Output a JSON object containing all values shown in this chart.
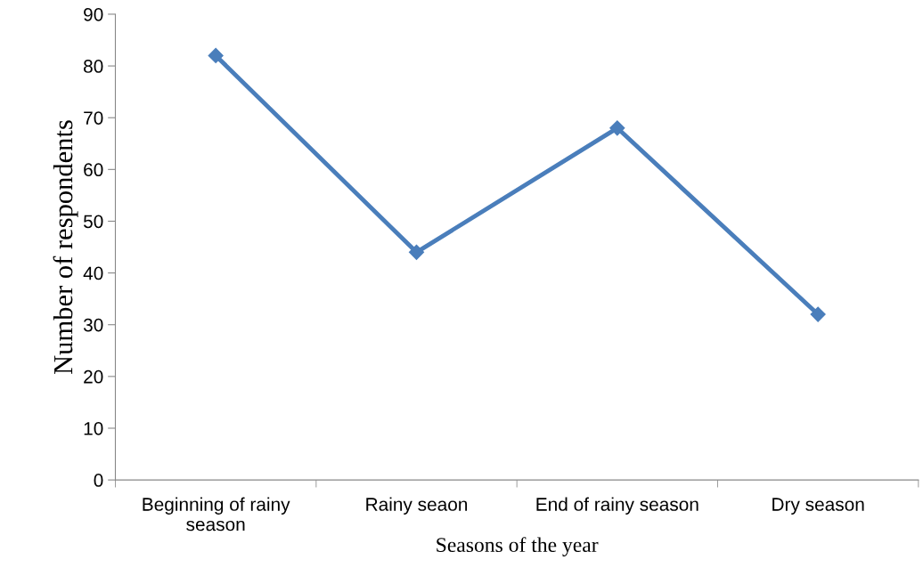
{
  "chart_data": {
    "type": "line",
    "xlabel": "Seasons of the year",
    "ylabel": "Number of respondents",
    "categories": [
      "Beginning of rainy\nseason",
      "Rainy seaon",
      "End of rainy season",
      "Dry season"
    ],
    "series": [
      {
        "color": "#4a7ebb",
        "values": [
          82,
          44,
          68,
          32
        ]
      }
    ],
    "ylim": [
      0,
      90
    ],
    "yticks": [
      0,
      10,
      20,
      30,
      40,
      50,
      60,
      70,
      80,
      90
    ],
    "marker": "diamond",
    "line_style": "solid",
    "grid": false,
    "legend": false
  }
}
